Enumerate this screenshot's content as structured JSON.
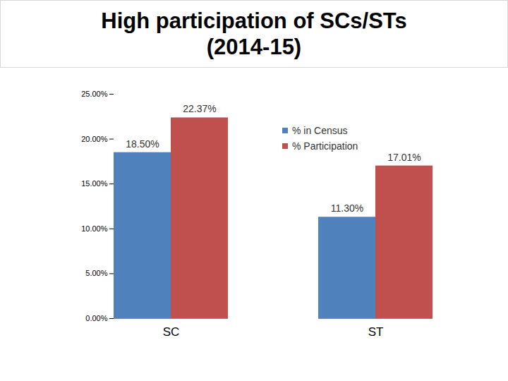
{
  "chart_data": {
    "type": "bar",
    "title": "High participation of SCs/STs (2014-15)",
    "categories": [
      "SC",
      "ST"
    ],
    "series": [
      {
        "name": "% in Census",
        "color": "#4f81bd",
        "values": [
          18.5,
          11.3
        ],
        "value_labels": [
          "18.50%",
          "11.30%"
        ]
      },
      {
        "name": "% Participation",
        "color": "#c0504d",
        "values": [
          22.37,
          17.01
        ],
        "value_labels": [
          "22.37%",
          "17.01%"
        ]
      }
    ],
    "ylim": [
      0,
      25
    ],
    "yticks": [
      {
        "value": 0,
        "label": "0.00%"
      },
      {
        "value": 5,
        "label": "5.00%"
      },
      {
        "value": 10,
        "label": "10.00%"
      },
      {
        "value": 15,
        "label": "15.00%"
      },
      {
        "value": 20,
        "label": "20.00%"
      },
      {
        "value": 25,
        "label": "25.00%"
      }
    ],
    "grid": false,
    "legend": "top-right",
    "data_labels": true
  }
}
